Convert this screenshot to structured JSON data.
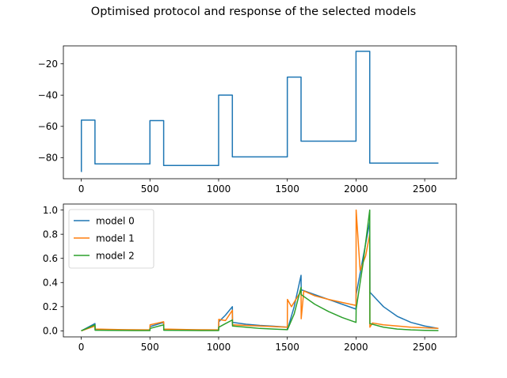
{
  "title": "Optimised protocol and response of the selected models",
  "chart_data": [
    {
      "type": "line",
      "title": "",
      "xlabel": "",
      "ylabel": "",
      "xlim": [
        -130,
        2730
      ],
      "ylim": [
        -93.5,
        -8.5
      ],
      "xticks": [
        0,
        500,
        1000,
        1500,
        2000,
        2500
      ],
      "yticks": [
        -80,
        -60,
        -40,
        -20
      ],
      "grid": false,
      "series": [
        {
          "color": "#1f77b4",
          "x": [
            0,
            0,
            1,
            1,
            100,
            100,
            500,
            500,
            600,
            600,
            1000,
            1000,
            1100,
            1100,
            1500,
            1500,
            1600,
            1600,
            2000,
            2000,
            2100,
            2100,
            2600
          ],
          "y": [
            -89,
            -89,
            -89,
            -56,
            -56,
            -84,
            -84,
            -56.3,
            -56.3,
            -85,
            -85,
            -40,
            -40,
            -79.5,
            -79.5,
            -28.5,
            -28.5,
            -69.5,
            -69.5,
            -12,
            -12,
            -83.5,
            -83.5
          ]
        }
      ]
    },
    {
      "type": "line",
      "title": "",
      "xlabel": "",
      "ylabel": "",
      "xlim": [
        -130,
        2730
      ],
      "ylim": [
        -0.05,
        1.05
      ],
      "xticks": [
        0,
        500,
        1000,
        1500,
        2000,
        2500
      ],
      "yticks": [
        0.0,
        0.2,
        0.4,
        0.6,
        0.8,
        1.0
      ],
      "grid": false,
      "legend": "upper-left",
      "series": [
        {
          "name": "model 0",
          "color": "#1f77b4",
          "x": [
            0,
            100,
            101,
            200,
            300,
            400,
            500,
            501,
            600,
            601,
            700,
            800,
            900,
            1000,
            1001,
            1050,
            1100,
            1101,
            1200,
            1300,
            1400,
            1500,
            1501,
            1550,
            1600,
            1601,
            1700,
            1800,
            1900,
            2000,
            2001,
            2050,
            2100,
            2101,
            2200,
            2300,
            2400,
            2500,
            2600
          ],
          "y": [
            0.0,
            0.06,
            0.012,
            0.01,
            0.008,
            0.006,
            0.005,
            0.035,
            0.07,
            0.012,
            0.01,
            0.008,
            0.006,
            0.005,
            0.075,
            0.13,
            0.2,
            0.07,
            0.055,
            0.045,
            0.038,
            0.03,
            0.01,
            0.2,
            0.46,
            0.34,
            0.3,
            0.26,
            0.22,
            0.18,
            0.3,
            0.6,
            0.9,
            0.32,
            0.2,
            0.12,
            0.07,
            0.04,
            0.02
          ]
        },
        {
          "name": "model 1",
          "color": "#ff7f0e",
          "x": [
            0,
            100,
            101,
            200,
            300,
            400,
            500,
            501,
            600,
            601,
            700,
            800,
            900,
            1000,
            1001,
            1050,
            1100,
            1101,
            1200,
            1300,
            1400,
            1500,
            1501,
            1530,
            1600,
            1601,
            1620,
            1700,
            1800,
            1900,
            2000,
            2001,
            2030,
            2070,
            2100,
            2101,
            2120,
            2200,
            2300,
            2400,
            2500,
            2600
          ],
          "y": [
            0.0,
            0.04,
            0.015,
            0.012,
            0.01,
            0.009,
            0.008,
            0.05,
            0.075,
            0.015,
            0.012,
            0.01,
            0.009,
            0.008,
            0.095,
            0.085,
            0.17,
            0.05,
            0.045,
            0.04,
            0.035,
            0.03,
            0.26,
            0.2,
            0.33,
            0.1,
            0.33,
            0.29,
            0.26,
            0.235,
            0.21,
            1.0,
            0.5,
            0.62,
            0.8,
            0.03,
            0.065,
            0.05,
            0.04,
            0.03,
            0.025,
            0.02
          ]
        },
        {
          "name": "model 2",
          "color": "#2ca02c",
          "x": [
            0,
            100,
            101,
            200,
            300,
            400,
            500,
            501,
            600,
            601,
            700,
            800,
            900,
            1000,
            1001,
            1050,
            1100,
            1101,
            1200,
            1300,
            1400,
            1500,
            1501,
            1550,
            1600,
            1601,
            1700,
            1800,
            1900,
            2000,
            2001,
            2050,
            2100,
            2101,
            2200,
            2300,
            2400,
            2500,
            2600
          ],
          "y": [
            0.0,
            0.05,
            0.005,
            0.004,
            0.003,
            0.002,
            0.002,
            0.02,
            0.05,
            0.005,
            0.004,
            0.003,
            0.002,
            0.002,
            0.03,
            0.06,
            0.09,
            0.04,
            0.03,
            0.02,
            0.015,
            0.01,
            0.01,
            0.14,
            0.36,
            0.3,
            0.22,
            0.16,
            0.11,
            0.07,
            0.18,
            0.55,
            1.0,
            0.06,
            0.03,
            0.015,
            0.008,
            0.004,
            0.002
          ]
        }
      ]
    }
  ]
}
